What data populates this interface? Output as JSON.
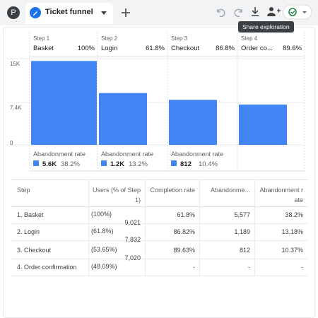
{
  "header": {
    "avatar": "P",
    "tab_title": "Ticket funnel",
    "tooltip": "Share exploration"
  },
  "chart_data": {
    "type": "bar",
    "steps": [
      "Step 1",
      "Step 2",
      "Step 3",
      "Step 4"
    ],
    "categories": [
      "Basket",
      "Login",
      "Checkout",
      "Order co..."
    ],
    "rates": [
      "100%",
      "61.8%",
      "86.8%",
      "89.6%"
    ],
    "values": [
      14598,
      9021,
      7832,
      7020
    ],
    "color": "#4285f4",
    "ylim": [
      0,
      15000
    ],
    "yticks": [
      0,
      {
        "value": 7400,
        "label": "7.4K"
      },
      {
        "value": 15000,
        "label": "15K"
      }
    ],
    "abandonment_label": "Abandonment rate",
    "abandonments": [
      {
        "count": "5.6K",
        "rate": "38.2%"
      },
      {
        "count": "1.2K",
        "rate": "13.2%"
      },
      {
        "count": "812",
        "rate": "10.4%"
      }
    ]
  },
  "table": {
    "headers": [
      "Step",
      "Users (% of Step 1)",
      "Completion rate",
      "Abandonme...",
      "Abandonment rate"
    ],
    "rows": [
      [
        "1. Basket",
        [
          "(100%)",
          "9,021"
        ],
        "61.8%",
        "5,577",
        "38.2%"
      ],
      [
        "2. Login",
        [
          "(61.8%)",
          "7,832"
        ],
        "86.82%",
        "1,189",
        "13.18%"
      ],
      [
        "3. Checkout",
        [
          "(53.65%)",
          "7,020"
        ],
        "89.63%",
        "812",
        "10.37%"
      ],
      [
        "4. Order confirmation",
        [
          "(48.09%)"
        ],
        "-",
        "-",
        "-"
      ]
    ]
  }
}
